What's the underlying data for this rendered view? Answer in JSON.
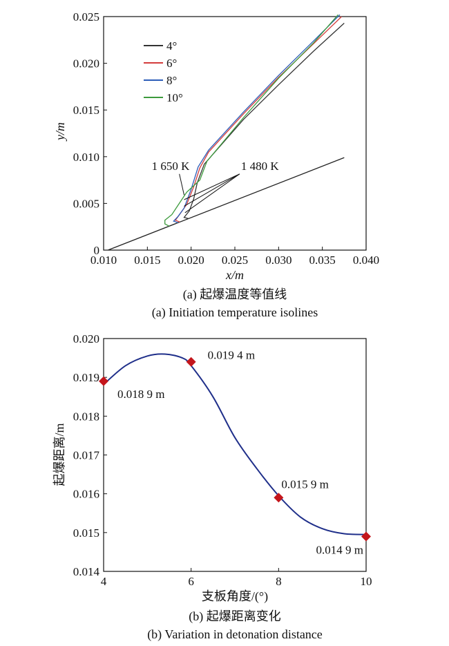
{
  "chart_data": [
    {
      "type": "line",
      "caption_zh": "(a) 起爆温度等值线",
      "caption_en": "(a) Initiation temperature isolines",
      "xlabel": "x/m",
      "ylabel": "y/m",
      "xlim": [
        0.01,
        0.04
      ],
      "ylim": [
        0,
        0.025
      ],
      "xticks": [
        "0.010",
        "0.015",
        "0.020",
        "0.025",
        "0.030",
        "0.035",
        "0.040"
      ],
      "yticks": [
        "0",
        "0.005",
        "0.010",
        "0.015",
        "0.020",
        "0.025"
      ],
      "legend_position": "top-left",
      "wedge": {
        "x": [
          0.0105,
          0.0375
        ],
        "y": [
          0,
          0.0099
        ]
      },
      "series": [
        {
          "name": "4°",
          "color": "#333333",
          "x": [
            0.0192,
            0.0198,
            0.0203,
            0.0207,
            0.0215,
            0.026,
            0.03,
            0.034,
            0.0375
          ],
          "y": [
            0.0035,
            0.0042,
            0.0055,
            0.0072,
            0.0092,
            0.014,
            0.0177,
            0.0213,
            0.0243
          ]
        },
        {
          "name": "6°",
          "color": "#d33b3b",
          "x": [
            0.0182,
            0.0186,
            0.0195,
            0.0203,
            0.021,
            0.022,
            0.026,
            0.03,
            0.034,
            0.0372
          ],
          "y": [
            0.0032,
            0.0037,
            0.0049,
            0.0068,
            0.0088,
            0.0105,
            0.0146,
            0.0185,
            0.0221,
            0.025
          ]
        },
        {
          "name": "8°",
          "color": "#2b5cb8",
          "x": [
            0.018,
            0.0185,
            0.0192,
            0.02,
            0.0208,
            0.022,
            0.026,
            0.03,
            0.034,
            0.037
          ],
          "y": [
            0.0031,
            0.0036,
            0.0045,
            0.0065,
            0.0089,
            0.0107,
            0.0148,
            0.0187,
            0.0224,
            0.0252
          ]
        },
        {
          "name": "10°",
          "color": "#3c9a3c",
          "x": [
            0.017,
            0.017,
            0.0178,
            0.0185,
            0.0195,
            0.021,
            0.0218,
            0.026,
            0.03,
            0.034,
            0.0368
          ],
          "y": [
            0.0028,
            0.0032,
            0.0038,
            0.0048,
            0.0062,
            0.0075,
            0.0095,
            0.0142,
            0.0184,
            0.0222,
            0.0252
          ]
        }
      ],
      "annotations": [
        {
          "text": "1 650 K",
          "x": 0.0155,
          "y": 0.0083,
          "points": [
            [
              0.0192,
              0.0059
            ]
          ]
        },
        {
          "text": "1 480 K",
          "x": 0.0257,
          "y": 0.0083,
          "points": [
            [
              0.0193,
              0.004
            ],
            [
              0.0192,
              0.0047
            ],
            [
              0.0192,
              0.0054
            ]
          ]
        }
      ]
    },
    {
      "type": "line",
      "caption_zh": "(b) 起爆距离变化",
      "caption_en": "(b)  Variation in detonation distance",
      "xlabel": "支板角度/(°)",
      "ylabel": "起爆距离/m",
      "xlim": [
        4,
        10
      ],
      "ylim": [
        0.014,
        0.02
      ],
      "xticks": [
        "4",
        "6",
        "8",
        "10"
      ],
      "yticks": [
        "0.014",
        "0.015",
        "0.016",
        "0.017",
        "0.018",
        "0.019",
        "0.020"
      ],
      "line_color": "#1f2f8a",
      "marker_color": "#c4161c",
      "curve": {
        "x": [
          4.0,
          4.5,
          5.0,
          5.4,
          5.8,
          6.0,
          6.5,
          7.0,
          7.5,
          8.0,
          8.5,
          9.0,
          9.5,
          10.0
        ],
        "y": [
          0.01882,
          0.0193,
          0.01955,
          0.0196,
          0.0195,
          0.0193,
          0.0185,
          0.01745,
          0.01665,
          0.01595,
          0.0154,
          0.0151,
          0.01497,
          0.01495
        ]
      },
      "points": [
        {
          "x": 4,
          "y": 0.0189,
          "label": "0.018 9 m",
          "pos": "below-right"
        },
        {
          "x": 6,
          "y": 0.0194,
          "label": "0.019 4 m",
          "pos": "right"
        },
        {
          "x": 8,
          "y": 0.0159,
          "label": "0.015  9 m",
          "pos": "above-right"
        },
        {
          "x": 10,
          "y": 0.0149,
          "label": "0.014 9 m",
          "pos": "below-left"
        }
      ]
    }
  ]
}
